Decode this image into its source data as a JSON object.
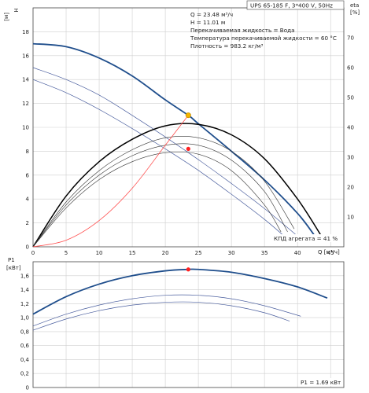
{
  "colors": {
    "pump_curve": "#1f4e8c",
    "aux_curve": "#4a5e9e",
    "efficiency_curve": "#000000",
    "system_curve": "#ff4d4d",
    "duty_point": "#f3b400",
    "marker": "#ff2020",
    "grid": "#cfcfcf"
  },
  "chart_data": [
    {
      "type": "line",
      "title": "UPS 65-185 F, 3*400 V, 50Hz",
      "info_lines": [
        "Q = 23.48 м³/ч",
        "H = 11.01 м",
        "Перекачиваемая жидкость = Вода",
        "Температура перекачиваемой жидкости = 60 °C",
        "Плотность = 983.2 кг/м³"
      ],
      "ylabel_name": "H",
      "ylabel_unit": "[м]",
      "y2label_name": "eta",
      "y2label_unit": "[%]",
      "xlabel": "Q [м³/ч]",
      "xlim": [
        0,
        47
      ],
      "ylim": [
        0,
        20
      ],
      "y2lim": [
        0,
        80
      ],
      "x_ticks": [
        0,
        5,
        10,
        15,
        20,
        25,
        30,
        35,
        40,
        45
      ],
      "y_ticks": [
        0,
        2,
        4,
        6,
        8,
        10,
        12,
        14,
        16,
        18
      ],
      "y2_ticks": [
        10,
        20,
        30,
        40,
        50,
        60,
        70
      ],
      "grid": true,
      "series": [
        {
          "role": "pump_curve",
          "axis": "left",
          "x": [
            0,
            5,
            10,
            15,
            20,
            23.48,
            25,
            30,
            35,
            40,
            42.5
          ],
          "y": [
            17.0,
            16.75,
            15.8,
            14.3,
            12.3,
            11.01,
            10.3,
            8.0,
            5.6,
            2.8,
            1.0
          ]
        },
        {
          "role": "aux_curve",
          "axis": "left",
          "x": [
            0,
            5,
            10,
            15,
            20,
            25,
            30,
            35,
            40
          ],
          "y": [
            15.0,
            14.0,
            12.7,
            11.0,
            9.2,
            7.3,
            5.3,
            3.2,
            0.9
          ]
        },
        {
          "role": "aux_curve",
          "axis": "left",
          "x": [
            0,
            5,
            10,
            15,
            20,
            25,
            30,
            35,
            38.8
          ],
          "y": [
            14.0,
            12.9,
            11.5,
            9.9,
            8.2,
            6.4,
            4.4,
            2.3,
            0.5
          ]
        },
        {
          "role": "efficiency_curve",
          "axis": "right",
          "x": [
            0,
            5,
            10,
            15,
            20,
            25,
            30,
            35,
            40,
            43.5
          ],
          "y": [
            0,
            17,
            28.5,
            36,
            40.5,
            41,
            37.5,
            29.5,
            16,
            4
          ]
        },
        {
          "role": "efficiency_curve_thin",
          "axis": "right",
          "x": [
            0,
            5,
            10,
            15,
            20,
            25,
            30,
            35,
            39.5
          ],
          "y": [
            0,
            15,
            25.5,
            32.5,
            36.5,
            36.5,
            32,
            22,
            6
          ]
        },
        {
          "role": "efficiency_curve_thin",
          "axis": "right",
          "x": [
            0,
            5,
            10,
            15,
            20,
            25,
            30,
            35,
            38.5
          ],
          "y": [
            0,
            14,
            24,
            30.5,
            34,
            34,
            29,
            18.5,
            5
          ]
        },
        {
          "role": "efficiency_curve_thin",
          "axis": "right",
          "x": [
            0,
            5,
            10,
            15,
            20,
            25,
            30,
            35,
            37.5
          ],
          "y": [
            0,
            13,
            22.5,
            28.5,
            31.5,
            31,
            25.5,
            14,
            5
          ]
        },
        {
          "role": "system_curve",
          "axis": "left",
          "x": [
            0,
            5,
            10,
            15,
            20,
            23.48
          ],
          "y": [
            0,
            0.55,
            2.2,
            4.9,
            8.5,
            11.01
          ]
        }
      ],
      "markers": [
        {
          "role": "duty_point",
          "axis": "left",
          "x": 23.48,
          "y": 11.01
        },
        {
          "role": "marker",
          "axis": "left",
          "x": 23.48,
          "y": 8.2
        }
      ],
      "annotation": "КПД агрегата = 41 %"
    },
    {
      "type": "line",
      "ylabel_name": "P1",
      "ylabel_unit": "[кВт]",
      "ylim": [
        0,
        1.8
      ],
      "xlim": [
        0,
        47
      ],
      "y_ticks": [
        "0",
        "0,2",
        "0,4",
        "0,6",
        "0,8",
        "1,0",
        "1,2",
        "1,4",
        "1,6"
      ],
      "y_tick_values": [
        0,
        0.2,
        0.4,
        0.6,
        0.8,
        1.0,
        1.2,
        1.4,
        1.6
      ],
      "grid": true,
      "series": [
        {
          "role": "pump_curve",
          "x": [
            0,
            5,
            10,
            15,
            20,
            23.48,
            25,
            30,
            35,
            40,
            44.5
          ],
          "y": [
            1.05,
            1.3,
            1.48,
            1.6,
            1.67,
            1.69,
            1.69,
            1.65,
            1.56,
            1.44,
            1.28
          ]
        },
        {
          "role": "aux_curve",
          "x": [
            0,
            5,
            10,
            15,
            20,
            25,
            30,
            35,
            40.5
          ],
          "y": [
            0.88,
            1.05,
            1.18,
            1.27,
            1.32,
            1.32,
            1.27,
            1.17,
            1.02
          ]
        },
        {
          "role": "aux_curve",
          "x": [
            0,
            5,
            10,
            15,
            20,
            25,
            30,
            35,
            38.8
          ],
          "y": [
            0.82,
            0.98,
            1.1,
            1.18,
            1.22,
            1.22,
            1.17,
            1.07,
            0.95
          ]
        }
      ],
      "markers": [
        {
          "role": "marker",
          "x": 23.48,
          "y": 1.69
        }
      ],
      "annotation": "P1 = 1.69 кВт"
    }
  ]
}
